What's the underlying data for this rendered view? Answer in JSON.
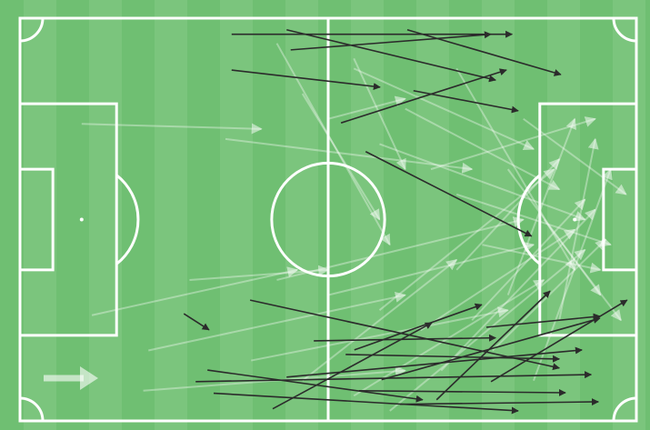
{
  "chart_data": {
    "type": "pass_map",
    "xlim": [
      0,
      120
    ],
    "ylim": [
      0,
      80
    ],
    "key_pass_color": "#2b2b2b",
    "pass_color": "rgba(255,255,255,0.35)",
    "key_passes": [
      [
        41.2,
        3.2,
        95.8,
        3.2
      ],
      [
        51.9,
        2.3,
        92.6,
        12.3
      ],
      [
        52.7,
        6.3,
        91.7,
        3.2
      ],
      [
        75.4,
        2.3,
        105.3,
        11.2
      ],
      [
        41.2,
        10.3,
        70.1,
        13.7
      ],
      [
        76.6,
        14.4,
        97.0,
        18.4
      ],
      [
        62.5,
        20.8,
        94.7,
        10.3
      ],
      [
        67.3,
        26.5,
        99.6,
        43.3
      ],
      [
        31.9,
        58.7,
        36.8,
        61.9
      ],
      [
        44.8,
        56.0,
        105.0,
        69.5
      ],
      [
        57.2,
        64.1,
        92.6,
        63.5
      ],
      [
        65.1,
        65.9,
        89.9,
        56.9
      ],
      [
        36.5,
        69.9,
        78.4,
        75.8
      ],
      [
        34.2,
        72.2,
        111.2,
        70.8
      ],
      [
        37.7,
        74.5,
        97.0,
        78.0
      ],
      [
        49.2,
        77.6,
        80.2,
        60.5
      ],
      [
        51.9,
        71.3,
        109.4,
        65.9
      ],
      [
        70.4,
        71.8,
        112.9,
        59.6
      ],
      [
        81.1,
        75.8,
        103.2,
        54.2
      ],
      [
        91.7,
        72.2,
        118.2,
        56.0
      ],
      [
        90.8,
        61.4,
        112.9,
        59.2
      ],
      [
        74.0,
        76.7,
        112.6,
        76.2
      ],
      [
        63.4,
        66.8,
        105.0,
        67.7
      ],
      [
        66.0,
        74.0,
        106.2,
        74.4
      ]
    ],
    "passes": [
      [
        60,
        20,
        75,
        16
      ],
      [
        12,
        21,
        47,
        22
      ],
      [
        40,
        24,
        88,
        30
      ],
      [
        55,
        15,
        70,
        40
      ],
      [
        65,
        10,
        100,
        26
      ],
      [
        70,
        25,
        110,
        40
      ],
      [
        75,
        18,
        105,
        34
      ],
      [
        80,
        30,
        112,
        20
      ],
      [
        85,
        50,
        105,
        28
      ],
      [
        88,
        60,
        110,
        36
      ],
      [
        90,
        45,
        113,
        50
      ],
      [
        78,
        62,
        108,
        42
      ],
      [
        70,
        58,
        104,
        30
      ],
      [
        60,
        55,
        100,
        45
      ],
      [
        50,
        52,
        98,
        40
      ],
      [
        33,
        52,
        60,
        50
      ],
      [
        14,
        59,
        54,
        50
      ],
      [
        25,
        66,
        75,
        55
      ],
      [
        45,
        68,
        95,
        58
      ],
      [
        55,
        72,
        85,
        48
      ],
      [
        65,
        75,
        102,
        52
      ],
      [
        72,
        78,
        110,
        46
      ],
      [
        82,
        70,
        112,
        38
      ],
      [
        92,
        66,
        114,
        44
      ],
      [
        100,
        72,
        115,
        30
      ],
      [
        95,
        30,
        113,
        55
      ],
      [
        98,
        20,
        118,
        35
      ],
      [
        85,
        10,
        108,
        50
      ],
      [
        105,
        60,
        112,
        24
      ],
      [
        102,
        40,
        117,
        60
      ],
      [
        24,
        74,
        75,
        70
      ],
      [
        65,
        8,
        75,
        30
      ],
      [
        50,
        5,
        72,
        45
      ],
      [
        85,
        35,
        115,
        45
      ],
      [
        95,
        55,
        108,
        20
      ]
    ]
  }
}
